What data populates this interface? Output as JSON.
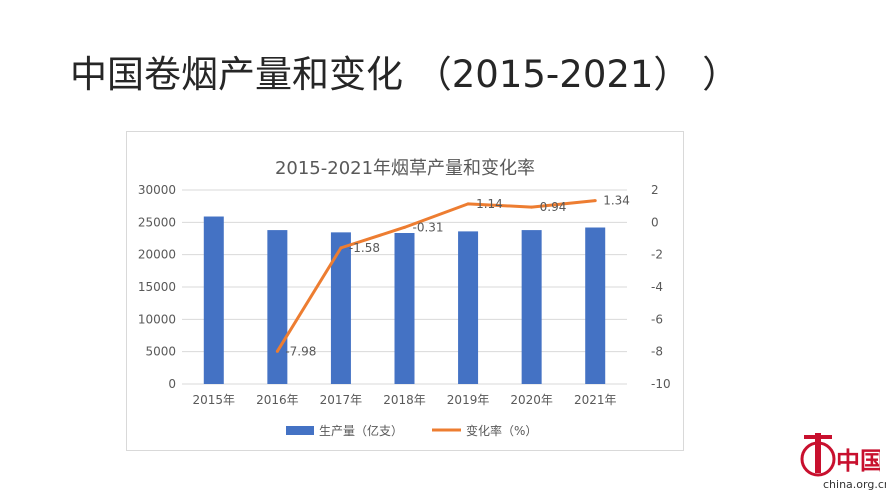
{
  "slide": {
    "title": "中国卷烟产量和变化 （2015-2021）  ）"
  },
  "watermark": {
    "logo_text": "中国网",
    "site": "china.org.cn"
  },
  "colors": {
    "bar": "#4472C4",
    "line": "#ED7D31",
    "grid": "#d9d9d9",
    "axis_text": "#595959"
  },
  "chart_data": {
    "type": "bar",
    "title": "2015-2021年烟草产量和变化率",
    "categories": [
      "2015年",
      "2016年",
      "2017年",
      "2018年",
      "2019年",
      "2020年",
      "2021年"
    ],
    "series": [
      {
        "name": "生产量（亿支）",
        "type": "bar",
        "axis": "left",
        "values": [
          25900,
          23800,
          23450,
          23350,
          23600,
          23800,
          24200
        ]
      },
      {
        "name": "变化率（%）",
        "type": "line",
        "axis": "right",
        "values": [
          null,
          -7.98,
          -1.58,
          -0.31,
          1.14,
          0.94,
          1.34
        ],
        "labels": [
          "",
          "-7.98",
          "-1.58",
          "-0.31",
          "1.14",
          "0.94",
          "1.34"
        ]
      }
    ],
    "y_left": {
      "min": 0,
      "max": 30000,
      "ticks": [
        "0",
        "5000",
        "10000",
        "15000",
        "20000",
        "25000",
        "30000"
      ]
    },
    "y_right": {
      "min": -10,
      "max": 2,
      "ticks": [
        "-10",
        "-8",
        "-6",
        "-4",
        "-2",
        "0",
        "2"
      ]
    },
    "grid": true,
    "legend_position": "bottom"
  }
}
